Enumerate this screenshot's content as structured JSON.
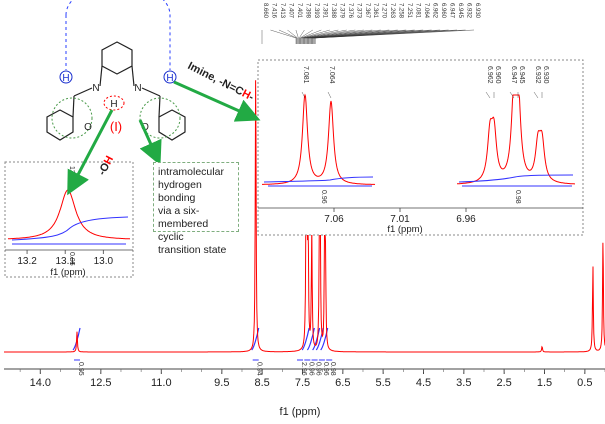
{
  "chart_data": [
    {
      "type": "line",
      "xlabel": "f1 (ppm)",
      "xlim": [
        14.9,
        0.0
      ],
      "x_ticks": [
        "14.0",
        "12.5",
        "11.0",
        "9.5",
        "8.5",
        "7.5",
        "6.5",
        "5.5",
        "4.5",
        "3.5",
        "2.5",
        "1.5",
        "0.5"
      ],
      "x_tick_values": [
        14.0,
        12.5,
        11.0,
        9.5,
        8.5,
        7.5,
        6.5,
        5.5,
        4.5,
        3.5,
        2.5,
        1.5,
        0.5
      ],
      "series": [
        {
          "color": "#ff0000",
          "peaks": [
            {
              "ppm": 13.09,
              "height": 0.07
            },
            {
              "ppm": 8.66,
              "height": 1.0
            },
            {
              "ppm": 7.41,
              "height": 0.5
            },
            {
              "ppm": 7.39,
              "height": 0.47
            },
            {
              "ppm": 7.36,
              "height": 0.35
            },
            {
              "ppm": 7.27,
              "height": 0.42
            },
            {
              "ppm": 7.08,
              "height": 0.4
            },
            {
              "ppm": 7.06,
              "height": 0.38
            },
            {
              "ppm": 6.95,
              "height": 0.4
            },
            {
              "ppm": 6.93,
              "height": 0.28
            },
            {
              "ppm": 1.56,
              "height": 0.02
            },
            {
              "ppm": 0.3,
              "height": 0.3
            },
            {
              "ppm": 0.05,
              "height": 0.4
            }
          ]
        },
        {
          "color": "#3333ff",
          "type": "integral"
        }
      ],
      "integrals": [
        {
          "ppm": 13.09,
          "label": "0.95"
        },
        {
          "ppm": 8.66,
          "label": "0.94"
        },
        {
          "ppm": 7.41,
          "label": "2.96"
        },
        {
          "ppm": 7.28,
          "label": "0.96"
        },
        {
          "ppm": 7.15,
          "label": "0.96"
        },
        {
          "ppm": 7.06,
          "label": "0.96"
        },
        {
          "ppm": 6.95,
          "label": "0.98"
        }
      ],
      "peak_labels": [
        "8.660",
        "7.416",
        "7.413",
        "7.407",
        "7.401",
        "7.398",
        "7.393",
        "7.391",
        "7.388",
        "7.379",
        "7.376",
        "7.373",
        "7.367",
        "7.361",
        "7.270",
        "7.263",
        "7.258",
        "7.251",
        "7.081",
        "7.064",
        "6.962",
        "6.960",
        "6.947",
        "6.945",
        "6.932",
        "6.930"
      ]
    },
    {
      "type": "line",
      "xlabel": "f1 (ppm)",
      "xlim": [
        13.25,
        12.93
      ],
      "x_ticks": [
        "13.2",
        "13.1",
        "13.0"
      ],
      "x_tick_values": [
        13.2,
        13.1,
        13.0
      ],
      "peak_labels": [
        "13.093"
      ],
      "integrals": [
        {
          "ppm": 13.09,
          "label": "0.95"
        }
      ]
    },
    {
      "type": "line",
      "xlabel": "f1 (ppm)",
      "x_ticks": [
        "7.06",
        "7.01",
        "6.96"
      ],
      "x_tick_values": [
        7.06,
        7.01,
        6.96
      ],
      "peak_labels": [
        "7.081",
        "7.064",
        "6.962",
        "6.960",
        "6.947",
        "6.945",
        "6.932",
        "6.930"
      ],
      "integrals": [
        {
          "ppm": 7.07,
          "label": "0.96"
        },
        {
          "ppm": 6.95,
          "label": "0.98"
        }
      ]
    }
  ],
  "annotations": {
    "imine": "Imine, -N=C",
    "imine_h": "H",
    "imine_dash": "-",
    "oh_dash": "-O",
    "oh_h": "H",
    "note_lines": [
      "intramolecular",
      "hydrogen bonding",
      "via a six-",
      "membered cyclic",
      "transition state"
    ],
    "roman": "(I)",
    "atom_n": "N",
    "atom_o": "O",
    "atom_h": "H"
  },
  "colors": {
    "spectrum": "#ff0000",
    "integral": "#3333ff",
    "arrow": "#22aa44",
    "highlight": "#ff0000",
    "h_circle": "#1a2fcf"
  }
}
